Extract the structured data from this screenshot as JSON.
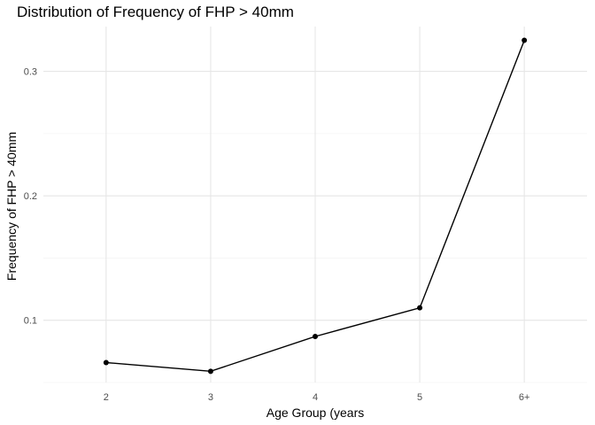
{
  "chart_data": {
    "type": "line",
    "title": "Distribution of Frequency of FHP > 40mm",
    "xlabel": "Age Group (years",
    "ylabel": "Frequency of FHP > 40mm",
    "categories": [
      "2",
      "3",
      "4",
      "5",
      "6+"
    ],
    "values": [
      0.066,
      0.059,
      0.087,
      0.11,
      0.325
    ],
    "y_ticks": [
      0.1,
      0.2,
      0.3
    ],
    "y_tick_labels": [
      "0.1",
      "0.2",
      "0.3"
    ],
    "ylim": [
      0.05,
      0.336
    ],
    "grid": true,
    "legend": "none"
  }
}
